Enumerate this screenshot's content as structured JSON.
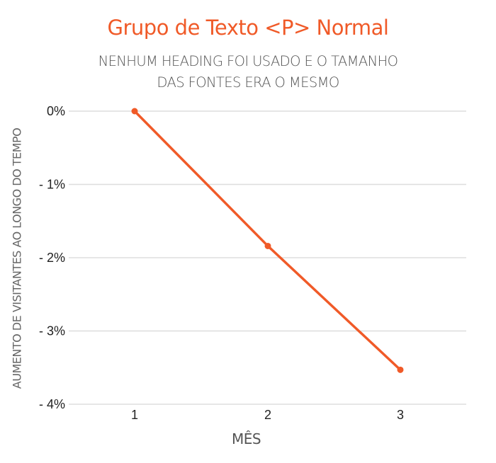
{
  "chart_data": {
    "type": "line",
    "title": "Grupo de Texto <P> Normal",
    "subtitle": [
      "NENHUM HEADING FOI USADO E O TAMANHO",
      "DAS FONTES ERA O MESMO"
    ],
    "xlabel": "MÊS",
    "ylabel": "AUMENTO DE VISITANTES AO LONGO DO TEMPO",
    "categories": [
      "1",
      "2",
      "3"
    ],
    "series": [
      {
        "name": "Grupo de Texto <P> Normal",
        "color": "#f05a28",
        "values": [
          0,
          -1.84,
          -3.53
        ]
      }
    ],
    "yticks": [
      "0%",
      "- 1%",
      "- 2%",
      "- 3%",
      "- 4%"
    ],
    "ylim": [
      -4,
      0
    ],
    "grid": true,
    "legend": "none"
  },
  "colors": {
    "accent": "#f05a28",
    "grid": "#dddddd",
    "text": "#555555"
  }
}
